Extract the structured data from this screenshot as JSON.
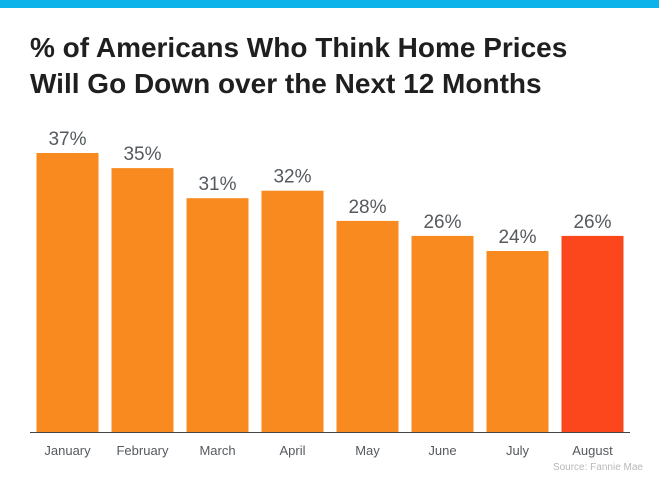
{
  "title_lines": [
    "% of Americans Who Think Home Prices",
    "Will Go Down over the Next 12 Months"
  ],
  "source": "Source: Fannie Mae",
  "colors": {
    "top_bar": "#0cb2ea",
    "bar": "#f98a20",
    "highlight_bar": "#fc461b",
    "value_label": "#555a5f",
    "category_label": "#555a5f",
    "axis": "#444444"
  },
  "chart_data": {
    "type": "bar",
    "categories": [
      "January",
      "February",
      "March",
      "April",
      "May",
      "June",
      "July",
      "August"
    ],
    "values": [
      37,
      35,
      31,
      32,
      28,
      26,
      24,
      26
    ],
    "value_labels": [
      "37%",
      "35%",
      "31%",
      "32%",
      "28%",
      "26%",
      "24%",
      "26%"
    ],
    "highlight_index": 7,
    "ylim": [
      0,
      37
    ],
    "grid": false,
    "legend": "none"
  }
}
